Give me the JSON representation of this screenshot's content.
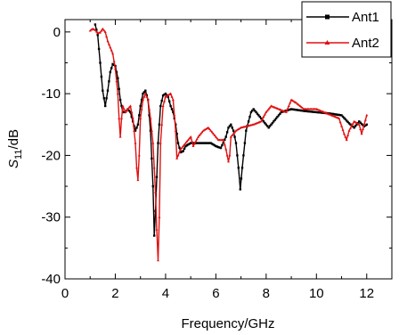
{
  "chart_data": {
    "type": "line",
    "xlabel": "Frequency/GHz",
    "ylabel": {
      "main": "S",
      "sub": "11",
      "suffix": "/dB"
    },
    "xlim": [
      0,
      13
    ],
    "ylim": [
      -40,
      2
    ],
    "xticks": [
      0,
      2,
      4,
      6,
      8,
      10,
      12
    ],
    "yticks": [
      0,
      -10,
      -20,
      -30,
      -40
    ],
    "xtick_labels": [
      "0",
      "2",
      "4",
      "6",
      "8",
      "10",
      "12"
    ],
    "ytick_labels": [
      "0",
      "-10",
      "-20",
      "-30",
      "-40"
    ],
    "grid": false,
    "legend_position": "top-right",
    "series": [
      {
        "name": "Ant1",
        "color": "#000000",
        "marker": "square",
        "points": [
          [
            1.2,
            1.2
          ],
          [
            1.3,
            -0.5
          ],
          [
            1.4,
            -5
          ],
          [
            1.5,
            -9.5
          ],
          [
            1.6,
            -12
          ],
          [
            1.7,
            -9.5
          ],
          [
            1.8,
            -6.5
          ],
          [
            1.9,
            -5.2
          ],
          [
            2.0,
            -5.5
          ],
          [
            2.1,
            -7.5
          ],
          [
            2.2,
            -11
          ],
          [
            2.3,
            -13
          ],
          [
            2.4,
            -13
          ],
          [
            2.5,
            -12.5
          ],
          [
            2.6,
            -13
          ],
          [
            2.7,
            -14.5
          ],
          [
            2.8,
            -16
          ],
          [
            2.9,
            -15
          ],
          [
            3.0,
            -12
          ],
          [
            3.1,
            -10
          ],
          [
            3.2,
            -9.5
          ],
          [
            3.3,
            -11
          ],
          [
            3.4,
            -16
          ],
          [
            3.5,
            -25
          ],
          [
            3.55,
            -33
          ],
          [
            3.6,
            -29
          ],
          [
            3.7,
            -18
          ],
          [
            3.8,
            -12
          ],
          [
            3.9,
            -10.3
          ],
          [
            4.0,
            -10
          ],
          [
            4.1,
            -10.5
          ],
          [
            4.2,
            -12
          ],
          [
            4.3,
            -13
          ],
          [
            4.4,
            -15
          ],
          [
            4.5,
            -18
          ],
          [
            4.6,
            -19.5
          ],
          [
            4.7,
            -19.3
          ],
          [
            4.8,
            -18.5
          ],
          [
            5.0,
            -18
          ],
          [
            5.5,
            -18
          ],
          [
            5.8,
            -18
          ],
          [
            6.0,
            -18.5
          ],
          [
            6.2,
            -18.8
          ],
          [
            6.4,
            -17
          ],
          [
            6.5,
            -15.5
          ],
          [
            6.6,
            -15
          ],
          [
            6.7,
            -16
          ],
          [
            6.8,
            -18
          ],
          [
            6.9,
            -22
          ],
          [
            6.97,
            -25.5
          ],
          [
            7.05,
            -22
          ],
          [
            7.2,
            -16
          ],
          [
            7.4,
            -13
          ],
          [
            7.5,
            -12.5
          ],
          [
            7.7,
            -13.5
          ],
          [
            7.9,
            -14.5
          ],
          [
            8.1,
            -15.5
          ],
          [
            8.3,
            -14.5
          ],
          [
            8.6,
            -13
          ],
          [
            9.0,
            -12.5
          ],
          [
            9.5,
            -12.8
          ],
          [
            10.0,
            -13
          ],
          [
            10.5,
            -13.2
          ],
          [
            11.0,
            -13.5
          ],
          [
            11.3,
            -14.8
          ],
          [
            11.5,
            -15.5
          ],
          [
            11.7,
            -14.5
          ],
          [
            11.9,
            -15.3
          ],
          [
            12.0,
            -15
          ]
        ]
      },
      {
        "name": "Ant2",
        "color": "#e01010",
        "marker": "triangle",
        "points": [
          [
            1.0,
            0.2
          ],
          [
            1.1,
            0.5
          ],
          [
            1.2,
            0.3
          ],
          [
            1.3,
            -0.2
          ],
          [
            1.4,
            -0.1
          ],
          [
            1.5,
            0.5
          ],
          [
            1.6,
            0
          ],
          [
            1.7,
            -1.5
          ],
          [
            1.8,
            -2.5
          ],
          [
            1.9,
            -3.5
          ],
          [
            2.0,
            -6
          ],
          [
            2.1,
            -10
          ],
          [
            2.15,
            -14
          ],
          [
            2.2,
            -17
          ],
          [
            2.25,
            -14
          ],
          [
            2.3,
            -12
          ],
          [
            2.4,
            -13
          ],
          [
            2.5,
            -12.5
          ],
          [
            2.6,
            -12
          ],
          [
            2.7,
            -14
          ],
          [
            2.8,
            -18
          ],
          [
            2.85,
            -22
          ],
          [
            2.9,
            -24
          ],
          [
            2.95,
            -20
          ],
          [
            3.0,
            -14
          ],
          [
            3.1,
            -11
          ],
          [
            3.2,
            -10
          ],
          [
            3.3,
            -11
          ],
          [
            3.4,
            -14
          ],
          [
            3.5,
            -18
          ],
          [
            3.6,
            -26
          ],
          [
            3.65,
            -32
          ],
          [
            3.7,
            -37
          ],
          [
            3.75,
            -30
          ],
          [
            3.8,
            -18
          ],
          [
            3.9,
            -12
          ],
          [
            4.0,
            -10.5
          ],
          [
            4.2,
            -10
          ],
          [
            4.3,
            -11
          ],
          [
            4.4,
            -16
          ],
          [
            4.45,
            -20.5
          ],
          [
            4.5,
            -20
          ],
          [
            4.6,
            -19
          ],
          [
            4.8,
            -18
          ],
          [
            5.0,
            -17
          ],
          [
            5.1,
            -18.5
          ],
          [
            5.3,
            -17
          ],
          [
            5.5,
            -16
          ],
          [
            5.7,
            -15.5
          ],
          [
            5.9,
            -16.5
          ],
          [
            6.1,
            -17.5
          ],
          [
            6.3,
            -17.5
          ],
          [
            6.4,
            -19
          ],
          [
            6.5,
            -21
          ],
          [
            6.55,
            -20
          ],
          [
            6.6,
            -17
          ],
          [
            6.8,
            -16
          ],
          [
            7.0,
            -15.5
          ],
          [
            7.5,
            -15
          ],
          [
            7.8,
            -14.5
          ],
          [
            8.0,
            -13
          ],
          [
            8.2,
            -12
          ],
          [
            8.5,
            -12.5
          ],
          [
            8.8,
            -13
          ],
          [
            9.0,
            -11
          ],
          [
            9.2,
            -11.5
          ],
          [
            9.5,
            -12.5
          ],
          [
            10.0,
            -12.5
          ],
          [
            10.3,
            -13
          ],
          [
            10.6,
            -13.5
          ],
          [
            10.9,
            -14
          ],
          [
            11.1,
            -16.5
          ],
          [
            11.2,
            -17.5
          ],
          [
            11.3,
            -16
          ],
          [
            11.5,
            -14.5
          ],
          [
            11.7,
            -15
          ],
          [
            11.8,
            -16.5
          ],
          [
            11.9,
            -15
          ],
          [
            12.0,
            -13.5
          ]
        ]
      }
    ]
  }
}
